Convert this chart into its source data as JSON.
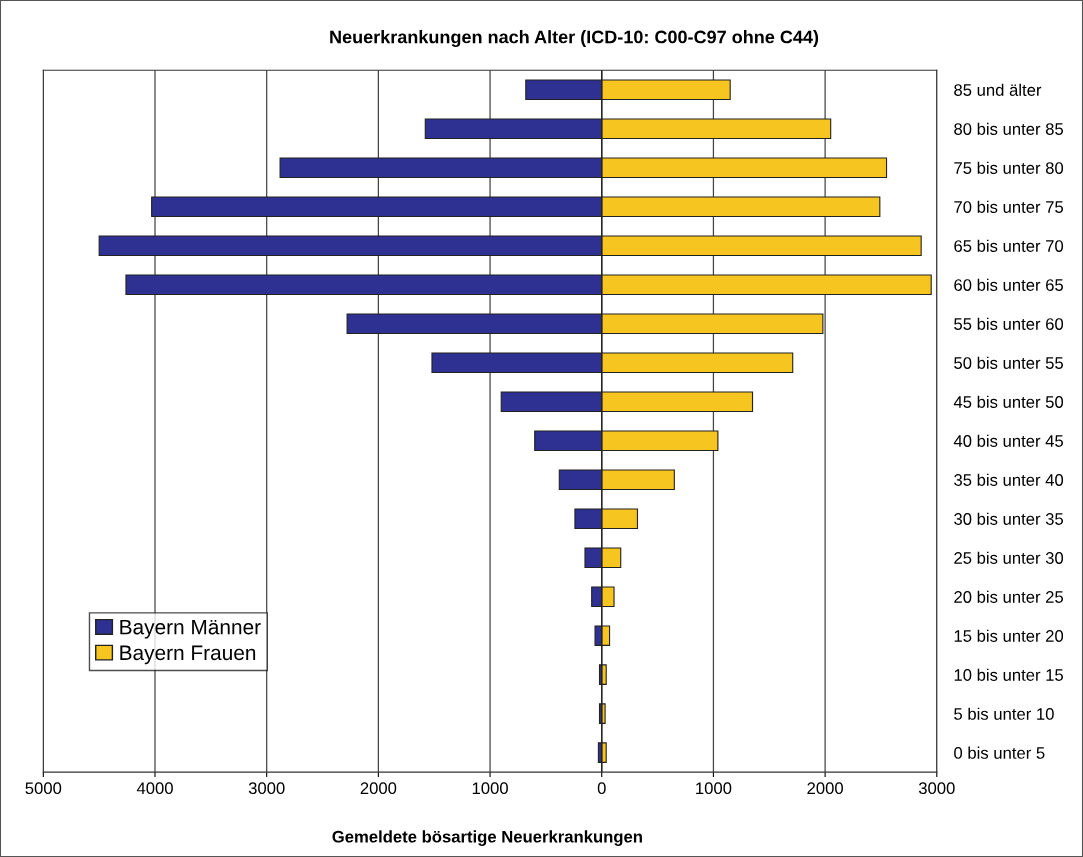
{
  "chart_data": {
    "type": "bar",
    "orientation": "horizontal",
    "stacked": true,
    "title": "Neuerkrankungen nach Alter (ICD-10: C00-C97 ohne C44)",
    "xlabel": "Gemeldete bösartige Neuerkrankungen",
    "categories": [
      "85 und älter",
      "80 bis unter 85",
      "75 bis unter 80",
      "70 bis unter 75",
      "65 bis unter 70",
      "60 bis unter 65",
      "55 bis unter 60",
      "50 bis unter 55",
      "45 bis unter 50",
      "40 bis unter 45",
      "35 bis unter 40",
      "30 bis unter 35",
      "25 bis unter 30",
      "20 bis unter 25",
      "15 bis unter 20",
      "10 bis unter 15",
      "5 bis unter 10",
      "0 bis unter 5"
    ],
    "series": [
      {
        "name": "Bayern Männer",
        "color": "#2e3192",
        "values": [
          -680,
          -1580,
          -2880,
          -4030,
          -4500,
          -4260,
          -2280,
          -1520,
          -900,
          -600,
          -380,
          -240,
          -150,
          -90,
          -60,
          -20,
          -20,
          -30
        ]
      },
      {
        "name": "Bayern Frauen",
        "color": "#f7c520",
        "values": [
          1150,
          2050,
          2550,
          2490,
          2860,
          2950,
          1980,
          1710,
          1350,
          1040,
          650,
          320,
          170,
          110,
          70,
          40,
          30,
          40
        ]
      }
    ],
    "xlim": [
      -5000,
      3000
    ],
    "xticks": [
      {
        "value": -5000,
        "label": "5000"
      },
      {
        "value": -4000,
        "label": "4000"
      },
      {
        "value": -3000,
        "label": "3000"
      },
      {
        "value": -2000,
        "label": "2000"
      },
      {
        "value": -1000,
        "label": "1000"
      },
      0,
      1000,
      2000,
      3000
    ],
    "grid": "x",
    "legend": "bottom left"
  }
}
